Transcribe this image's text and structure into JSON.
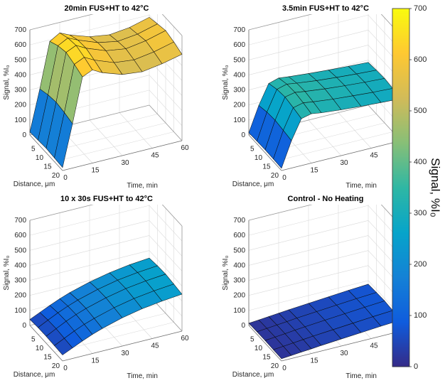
{
  "figure": {
    "background": "#ffffff",
    "colormap": [
      "#352a87",
      "#0f5cdd",
      "#1481d6",
      "#06a4ca",
      "#2eb7a4",
      "#87bf77",
      "#d1bb59",
      "#fec832",
      "#f9fb0e"
    ],
    "colorbar": {
      "label": "Signal, %I₀",
      "ticks": [
        0,
        100,
        200,
        300,
        400,
        500,
        600,
        700
      ],
      "min": 0,
      "max": 700
    }
  },
  "chart_data": [
    {
      "type": "surface",
      "title": "20min FUS+HT to 42°C",
      "xlabel": "Time, min",
      "ylabel": "Distance, μm",
      "zlabel": "Signal, %I₀",
      "x": [
        0,
        5,
        10,
        15,
        20,
        30,
        40,
        50,
        60
      ],
      "y": [
        0,
        5,
        10,
        15,
        20
      ],
      "xticks": [
        0,
        15,
        30,
        45,
        60
      ],
      "yticks": [
        5,
        10,
        15,
        20
      ],
      "zticks": [
        0,
        100,
        200,
        300,
        400,
        500,
        600,
        700
      ],
      "xlim": [
        0,
        60
      ],
      "ylim": [
        0,
        20
      ],
      "zlim": [
        0,
        700
      ],
      "values": [
        [
          20,
          290,
          590,
          630,
          600,
          555,
          535,
          550,
          585
        ],
        [
          25,
          310,
          620,
          655,
          625,
          575,
          550,
          565,
          600
        ],
        [
          30,
          320,
          635,
          665,
          630,
          580,
          560,
          580,
          615
        ],
        [
          25,
          310,
          615,
          645,
          610,
          560,
          545,
          565,
          598
        ],
        [
          20,
          295,
          590,
          620,
          585,
          540,
          525,
          545,
          575
        ]
      ]
    },
    {
      "type": "surface",
      "title": "3.5min FUS+HT to 42°C",
      "xlabel": "Time, min",
      "ylabel": "Distance, μm",
      "zlabel": "Signal, %I₀",
      "x": [
        0,
        5,
        10,
        15,
        20,
        30,
        40,
        50,
        60
      ],
      "y": [
        0,
        5,
        10,
        15,
        20
      ],
      "xticks": [
        0,
        15,
        30,
        45,
        60
      ],
      "yticks": [
        5,
        10,
        15,
        20
      ],
      "zticks": [
        0,
        100,
        200,
        300,
        400,
        500,
        600,
        700
      ],
      "xlim": [
        0,
        60
      ],
      "ylim": [
        0,
        20
      ],
      "zlim": [
        0,
        700
      ],
      "values": [
        [
          15,
          180,
          310,
          330,
          322,
          310,
          300,
          292,
          285
        ],
        [
          18,
          195,
          330,
          348,
          338,
          322,
          310,
          300,
          292
        ],
        [
          20,
          200,
          338,
          352,
          342,
          326,
          314,
          304,
          296
        ],
        [
          18,
          192,
          326,
          342,
          332,
          317,
          306,
          296,
          289
        ],
        [
          15,
          182,
          312,
          328,
          318,
          305,
          295,
          287,
          280
        ]
      ]
    },
    {
      "type": "surface",
      "title": "10 x 30s FUS+HT to 42°C",
      "xlabel": "Time, min",
      "ylabel": "Distance, μm",
      "zlabel": "Signal, %I₀",
      "x": [
        0,
        5,
        10,
        15,
        20,
        30,
        40,
        50,
        60
      ],
      "y": [
        0,
        5,
        10,
        15,
        20
      ],
      "xticks": [
        0,
        15,
        30,
        45,
        60
      ],
      "yticks": [
        5,
        10,
        15,
        20
      ],
      "zticks": [
        0,
        100,
        200,
        300,
        400,
        500,
        600,
        700
      ],
      "xlim": [
        0,
        60
      ],
      "ylim": [
        0,
        20
      ],
      "zlim": [
        0,
        700
      ],
      "values": [
        [
          40,
          70,
          100,
          128,
          152,
          190,
          218,
          238,
          250
        ],
        [
          45,
          78,
          110,
          138,
          162,
          200,
          228,
          246,
          258
        ],
        [
          46,
          80,
          113,
          141,
          165,
          203,
          231,
          249,
          261
        ],
        [
          43,
          75,
          107,
          135,
          158,
          196,
          224,
          242,
          254
        ],
        [
          40,
          70,
          100,
          127,
          150,
          188,
          215,
          233,
          246
        ]
      ]
    },
    {
      "type": "surface",
      "title": "Control - No Heating",
      "xlabel": "Time, min",
      "ylabel": "Distance, μm",
      "zlabel": "Signal, %I₀",
      "x": [
        0,
        5,
        10,
        15,
        20,
        30,
        40,
        50,
        60
      ],
      "y": [
        0,
        5,
        10,
        15,
        20
      ],
      "xticks": [
        0,
        15,
        30,
        45,
        60
      ],
      "yticks": [
        5,
        10,
        15,
        20
      ],
      "zticks": [
        0,
        100,
        200,
        300,
        400,
        500,
        600,
        700
      ],
      "xlim": [
        0,
        60
      ],
      "ylim": [
        0,
        20
      ],
      "zlim": [
        0,
        700
      ],
      "values": [
        [
          15,
          20,
          26,
          32,
          38,
          48,
          58,
          68,
          76
        ],
        [
          17,
          23,
          29,
          35,
          42,
          52,
          62,
          72,
          80
        ],
        [
          18,
          24,
          30,
          37,
          43,
          54,
          64,
          74,
          83
        ],
        [
          16,
          22,
          28,
          34,
          40,
          50,
          60,
          70,
          78
        ],
        [
          15,
          20,
          26,
          31,
          37,
          47,
          56,
          66,
          74
        ]
      ]
    }
  ]
}
